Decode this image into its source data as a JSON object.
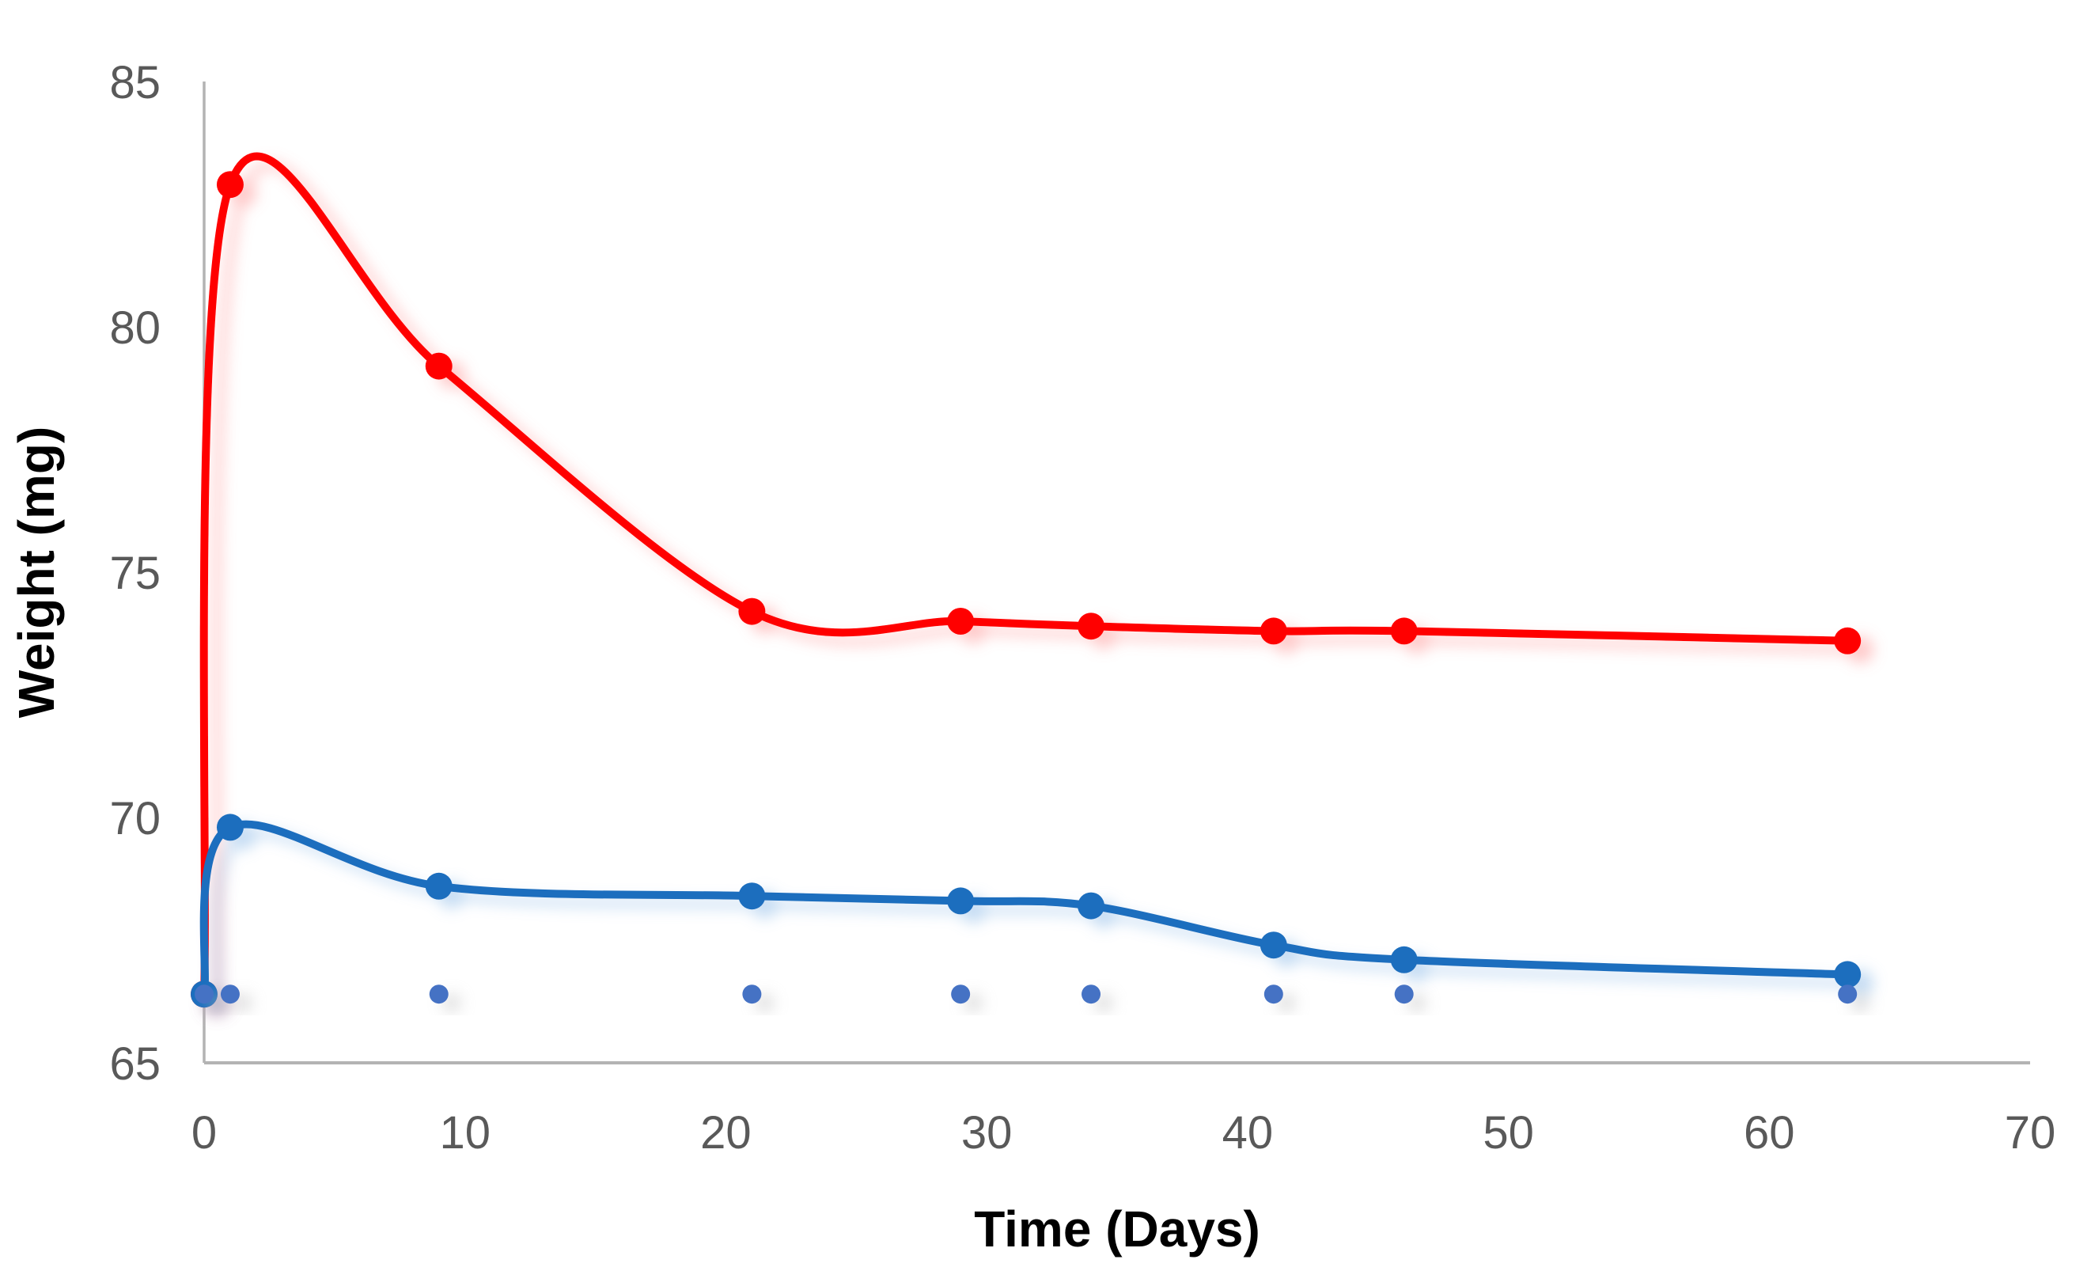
{
  "chart_data": {
    "type": "line",
    "title": "",
    "xlabel": "Time (Days)",
    "ylabel": "Weight (mg)",
    "xlim": [
      0,
      70
    ],
    "ylim": [
      65,
      85
    ],
    "x_ticks": [
      0,
      10,
      20,
      30,
      40,
      50,
      60,
      70
    ],
    "y_ticks": [
      65,
      70,
      75,
      80,
      85
    ],
    "grid": false,
    "legend_position": "none",
    "x": [
      0,
      1,
      9,
      21,
      29,
      34,
      41,
      46,
      63
    ],
    "series": [
      {
        "name": "red-series",
        "color": "#FF0000",
        "marker": "circle",
        "marker_color": "#FF0000",
        "line_style": "smooth",
        "values": [
          66.4,
          82.9,
          79.2,
          74.2,
          74.0,
          73.9,
          73.8,
          73.8,
          73.6
        ]
      },
      {
        "name": "blue-series",
        "color": "#1B6EBE",
        "marker": "circle",
        "marker_color": "#1B6EBE",
        "line_style": "smooth",
        "values": [
          66.4,
          69.8,
          68.6,
          68.4,
          68.3,
          68.2,
          67.4,
          67.1,
          66.8
        ]
      },
      {
        "name": "dashed-baseline-series",
        "color": "#C9C9C9",
        "marker": "circle",
        "marker_color": "#4472C4",
        "line_style": "dashed",
        "values": [
          66.4,
          66.4,
          66.4,
          66.4,
          66.4,
          66.4,
          66.4,
          66.4,
          66.4
        ]
      }
    ],
    "axis_color": "#B3B3B3",
    "tick_label_color": "#595959",
    "axis_title_color": "#000000"
  }
}
